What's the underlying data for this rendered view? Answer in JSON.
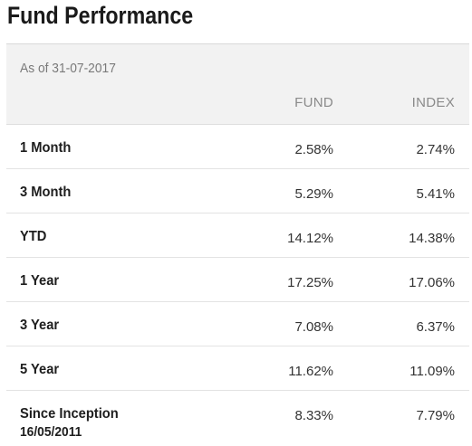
{
  "title": "Fund Performance",
  "as_of": "As of 31-07-2017",
  "columns": {
    "fund": "FUND",
    "index": "INDEX"
  },
  "rows": [
    {
      "label": "1 Month",
      "fund": "2.58%",
      "index": "2.74%"
    },
    {
      "label": "3 Month",
      "fund": "5.29%",
      "index": "5.41%"
    },
    {
      "label": "YTD",
      "fund": "14.12%",
      "index": "14.38%"
    },
    {
      "label": "1 Year",
      "fund": "17.25%",
      "index": "17.06%"
    },
    {
      "label": "3 Year",
      "fund": "7.08%",
      "index": "6.37%"
    },
    {
      "label": "5 Year",
      "fund": "11.62%",
      "index": "11.09%"
    },
    {
      "label": "Since Inception",
      "sublabel": "16/05/2011",
      "fund": "8.33%",
      "index": "7.79%"
    }
  ]
}
